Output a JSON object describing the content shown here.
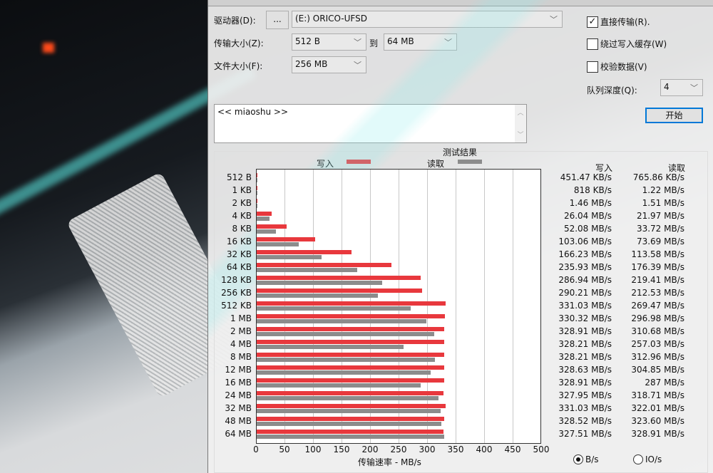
{
  "controls": {
    "drive_label": "驱动器(D):",
    "browse_label": "...",
    "drive_value": "(E:) ORICO-UFSD",
    "transfer_label": "传输大小(Z):",
    "transfer_from": "512 B",
    "to_label": "到",
    "transfer_to": "64 MB",
    "file_size_label": "文件大小(F):",
    "file_size": "256 MB",
    "direct_io": {
      "label": "直接传输(R).",
      "checked": true
    },
    "bypass_cache": {
      "label": "绕过写入缓存(W)",
      "checked": false
    },
    "verify": {
      "label": "校验数据(V)",
      "checked": false
    },
    "queue_label": "队列深度(Q):",
    "queue_value": "4",
    "start_label": "开始",
    "description": "<< miaoshu >>"
  },
  "results": {
    "title": "测试结果",
    "legend_write": "写入",
    "legend_read": "读取",
    "col_write": "写入",
    "col_read": "读取",
    "axis_label": "传输速率 - MB/s",
    "radio_bytes": "B/s",
    "radio_io": "IO/s",
    "selected_unit": "B/s"
  },
  "colors": {
    "write": "#e8383d",
    "read": "#8c8c8c"
  },
  "chart_data": {
    "type": "bar",
    "orientation": "horizontal",
    "xlim": [
      0,
      500
    ],
    "xticks": [
      "0",
      "50",
      "100",
      "150",
      "200",
      "250",
      "300",
      "350",
      "400",
      "450",
      "500"
    ],
    "xlabel": "传输速率 - MB/s",
    "categories": [
      "512 B",
      "1 KB",
      "2 KB",
      "4 KB",
      "8 KB",
      "16 KB",
      "32 KB",
      "64 KB",
      "128 KB",
      "256 KB",
      "512 KB",
      "1 MB",
      "2 MB",
      "4 MB",
      "8 MB",
      "12 MB",
      "16 MB",
      "24 MB",
      "32 MB",
      "48 MB",
      "64 MB"
    ],
    "series": [
      {
        "name": "写入",
        "values": [
          0.44,
          0.8,
          1.46,
          26.04,
          52.08,
          103.06,
          166.23,
          235.93,
          286.94,
          290.21,
          331.03,
          330.32,
          328.91,
          328.21,
          328.21,
          328.63,
          328.91,
          327.95,
          331.03,
          328.52,
          327.51
        ],
        "labels": [
          "451.47 KB/s",
          "818 KB/s",
          "1.46 MB/s",
          "26.04 MB/s",
          "52.08 MB/s",
          "103.06 MB/s",
          "166.23 MB/s",
          "235.93 MB/s",
          "286.94 MB/s",
          "290.21 MB/s",
          "331.03 MB/s",
          "330.32 MB/s",
          "328.91 MB/s",
          "328.21 MB/s",
          "328.21 MB/s",
          "328.63 MB/s",
          "328.91 MB/s",
          "327.95 MB/s",
          "331.03 MB/s",
          "328.52 MB/s",
          "327.51 MB/s"
        ]
      },
      {
        "name": "读取",
        "values": [
          0.75,
          1.22,
          1.51,
          21.97,
          33.72,
          73.69,
          113.58,
          176.39,
          219.41,
          212.53,
          269.47,
          296.98,
          310.68,
          257.03,
          312.96,
          304.85,
          287,
          318.71,
          322.01,
          323.6,
          328.91
        ],
        "labels": [
          "765.86 KB/s",
          "1.22 MB/s",
          "1.51 MB/s",
          "21.97 MB/s",
          "33.72 MB/s",
          "73.69 MB/s",
          "113.58 MB/s",
          "176.39 MB/s",
          "219.41 MB/s",
          "212.53 MB/s",
          "269.47 MB/s",
          "296.98 MB/s",
          "310.68 MB/s",
          "257.03 MB/s",
          "312.96 MB/s",
          "304.85 MB/s",
          "287 MB/s",
          "318.71 MB/s",
          "322.01 MB/s",
          "323.60 MB/s",
          "328.91 MB/s"
        ]
      }
    ],
    "grid": true,
    "legend": "top"
  }
}
